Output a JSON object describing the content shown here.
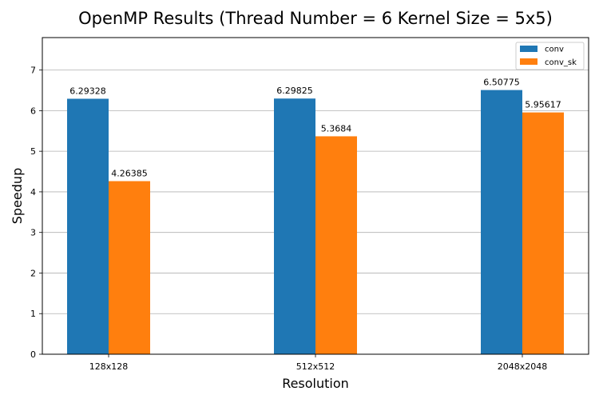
{
  "chart_data": {
    "type": "bar",
    "title": "OpenMP Results (Thread Number = 6 Kernel Size = 5x5)",
    "xlabel": "Resolution",
    "ylabel": "Speedup",
    "categories": [
      "128x128",
      "512x512",
      "2048x2048"
    ],
    "series": [
      {
        "name": "conv",
        "color": "#1f77b4",
        "values": [
          6.29328,
          6.29825,
          6.50775
        ],
        "labels": [
          "6.29328",
          "6.29825",
          "6.50775"
        ]
      },
      {
        "name": "conv_sk",
        "color": "#ff7f0e",
        "values": [
          4.26385,
          5.3684,
          5.95617
        ],
        "labels": [
          "4.26385",
          "5.3684",
          "5.95617"
        ]
      }
    ],
    "ylim": [
      0,
      7.8
    ],
    "yticks": [
      0,
      1,
      2,
      3,
      4,
      5,
      6,
      7
    ],
    "grid": "y",
    "legend_position": "top-right"
  }
}
